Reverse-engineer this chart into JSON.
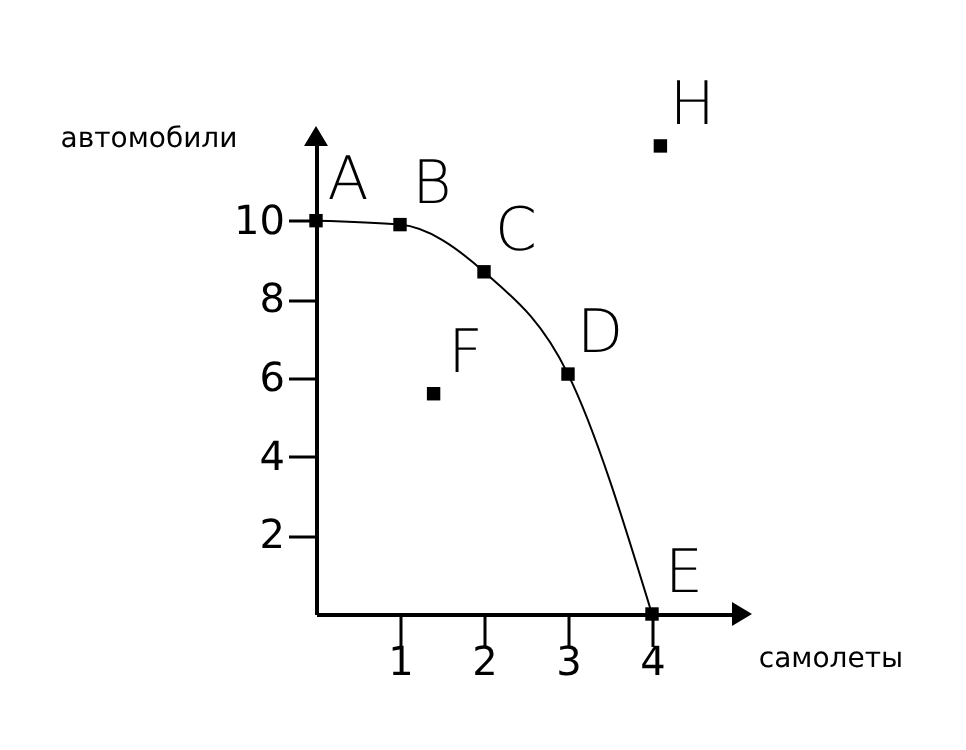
{
  "chart_data": {
    "type": "scatter",
    "xlabel": "самолеты",
    "ylabel": "автомобили",
    "xlim": [
      0,
      5
    ],
    "ylim": [
      0,
      12
    ],
    "xticks": [
      1,
      2,
      3,
      4
    ],
    "yticks": [
      2,
      4,
      6,
      8,
      10
    ],
    "grid": false,
    "series": [
      {
        "type": "line",
        "marker": "none",
        "color": "#000000",
        "x": [
          0,
          1,
          2,
          3,
          4
        ],
        "values": [
          10,
          9.9,
          8.7,
          6.1,
          0
        ]
      },
      {
        "marker": "square",
        "color": "#000000",
        "x": [
          0,
          1,
          2,
          3,
          4,
          1.4,
          4.1
        ],
        "values": [
          10,
          9.9,
          8.7,
          6.1,
          0,
          5.6,
          11.9
        ]
      }
    ],
    "annotations": [
      {
        "text": "A",
        "x": 0,
        "y": 10
      },
      {
        "text": "B",
        "x": 1,
        "y": 9.9
      },
      {
        "text": "C",
        "x": 2,
        "y": 8.7
      },
      {
        "text": "D",
        "x": 3,
        "y": 6.1
      },
      {
        "text": "E",
        "x": 4,
        "y": 0
      },
      {
        "text": "F",
        "x": 1.4,
        "y": 5.6
      },
      {
        "text": "H",
        "x": 4.1,
        "y": 11.9
      }
    ]
  }
}
